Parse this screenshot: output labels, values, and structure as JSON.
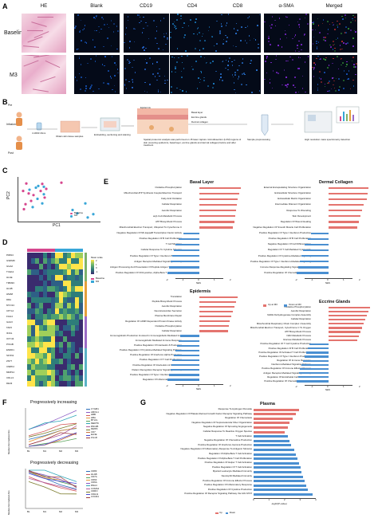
{
  "colors": {
    "red": "#e4746f",
    "blue": "#4a8fd1",
    "baseline": "#d6478e",
    "m3": "#38a6d8"
  },
  "panelA": {
    "label": "A",
    "columns": [
      "HE",
      "Blank",
      "CD19",
      "CD4",
      "CD8",
      "α-SMA",
      "Merged"
    ],
    "rows": [
      "Baseline",
      "M3"
    ]
  },
  "panelB": {
    "label": "B",
    "pre": "Pre",
    "post": "Post",
    "infusion": "Infusion",
    "drug": "4.19N0 16mL",
    "obtain": "Obtain skin tissue samples",
    "embed": "Embedding, sectioning and staining",
    "layers": [
      "Epidermis",
      "Basal layer",
      "Eccrine glands",
      "Dermal collagen"
    ],
    "spatial": "Spatial proteomic analysis was performed on 15 laser capture microdissection (LCM) regions of skin (covering epidermis, basal layer, eccrine glands and dermal collagen) before and after treatment",
    "prep": "Sample preprocessing",
    "ms": "High resolution mass spectrometry detection"
  },
  "panelC": {
    "label": "C",
    "xlabel": "PC1",
    "ylabel": "PC2",
    "legend": [
      "Baseline",
      "M3"
    ],
    "baseline": [
      [
        0.52,
        0.1
      ],
      [
        0.28,
        0.13
      ],
      [
        0.08,
        0.12
      ],
      [
        0.04,
        0.3
      ],
      [
        0.33,
        0.25
      ],
      [
        0.26,
        0.3
      ],
      [
        0.11,
        0.36
      ],
      [
        0.17,
        0.4
      ],
      [
        0.31,
        0.46
      ],
      [
        0.14,
        0.54
      ],
      [
        0.07,
        0.62
      ],
      [
        0.05,
        0.74
      ]
    ],
    "m3": [
      [
        0.23,
        0.18
      ],
      [
        0.3,
        0.2
      ],
      [
        0.2,
        0.22
      ],
      [
        0.12,
        0.27
      ],
      [
        0.3,
        0.38
      ],
      [
        0.22,
        0.49
      ],
      [
        0.28,
        0.6
      ],
      [
        0.16,
        0.69
      ],
      [
        0.82,
        0.6
      ],
      [
        0.66,
        0.76
      ],
      [
        0.72,
        0.84
      ],
      [
        0.92,
        0.86
      ],
      [
        0.85,
        0.94
      ]
    ]
  },
  "panelD": {
    "label": "D",
    "genes": [
      "PAB14",
      "GSDMD",
      "GGA2",
      "TCEA1",
      "HLAE",
      "TMM93",
      "HLAB",
      "HMA8",
      "DRA",
      "MYO1C",
      "CPYL2",
      "FGG4",
      "GAA3",
      "TAP2",
      "IF44L",
      "OXY44",
      "PX11B",
      "ENDD1",
      "SFXN1",
      "ZN77",
      "CMPK2",
      "MMP14",
      "CDLL3",
      "DE43"
    ],
    "legend_title": "Mean scale",
    "scale": [
      "2",
      "1",
      "0",
      "-1"
    ],
    "groups": [
      "Baseline",
      "M3"
    ]
  },
  "panelE": {
    "label": "E",
    "xlabel": "NES",
    "legend": [
      "Up at M3",
      "Down at M3"
    ],
    "charts": [
      {
        "title": "Basal Layer",
        "terms": [
          "Oxidative Phosphorylation",
          "Mitochondrial ATP Synthesis Coupled Electron Transport",
          "Fatty Acid Oxidation",
          "Cellular Respiration",
          "Aerobic Respiration",
          "acyl-CoA Metabolic Process",
          "ATP Biosynthetic Process",
          "Mitochondrial Electron Transport, Ubiquinol To Cytochrome C",
          "Negative Regulation Of NF-kappaB Transcription Factor Activity",
          "Positive Regulation Of B Cell Proliferation",
          "T Cell Migration",
          "Cellular Response To Cytokine Stimulus",
          "Positive Regulation Of Type I Interferon Production",
          "Antigen Receptor-Mediated Signaling Pathway",
          "Antigen Processing And Presentation Of Peptide Antigen Via MHC Class I",
          "Positive Regulation Of CD4-positive, Alpha-Beta T Cell Activation"
        ],
        "values": [
          2.6,
          2.5,
          2.4,
          2.35,
          2.3,
          2.25,
          2.2,
          2.1,
          -1.0,
          -1.3,
          -1.5,
          -1.6,
          -1.7,
          -1.8,
          -1.9,
          -2.0
        ]
      },
      {
        "title": "Dermal Collagen",
        "terms": [
          "External Encapsulating Structure Organization",
          "Extracellular Structure Organization",
          "Extracellular Matrix Organization",
          "Intermediate Filament Organization",
          "Response To Wounding",
          "Skin Development",
          "Regulation Of Wound Healing",
          "Negative Regulation Of Smooth Muscle Cell Proliferation",
          "Positive Regulation Of Type I Interferon Production",
          "Positive Regulation Of B Cell Proliferation",
          "Negative Regulation Of Cell Differentiation",
          "Regulation Of T Cell Mediated Cytotoxicity",
          "Positive Regulation Of Cytokine-Mediated Signaling",
          "Positive Regulation Of Type I Interferon-Mediated Signaling",
          "Immune Response-Regulating Signaling Pathway",
          "Positive Regulation Of Chemokine Production"
        ],
        "values": [
          2.5,
          2.45,
          2.4,
          2.2,
          2.1,
          2.0,
          1.9,
          1.8,
          -1.1,
          -1.3,
          -1.5,
          -1.6,
          -1.7,
          -1.8,
          -1.9,
          -2.0
        ]
      },
      {
        "title": "Epidermis",
        "terms": [
          "Translation",
          "Peptide Biosynthetic Process",
          "Aerobic Respiration",
          "Neurotransmitter Secretion",
          "Plasma Membrane Repair",
          "Regulation Of cAMP-Dependent Protein Kinase Activity",
          "Oxidative Phosphorylation",
          "Cellular Respiration",
          "Immunoglobulin Production Involved In Immunoglobulin-Mediated Immune Response",
          "Immunoglobulin Mediated Immune Response",
          "Positive Regulation Of Interleukin-6 Production",
          "Positive Regulation Of Cytokine-Mediated Signaling Pathway",
          "Positive Regulation Of Interferon-Alpha Production",
          "Positive Regulation Of T Cell Proliferation",
          "Positive Regulation Of Interleukin-12 Production",
          "Pattern Recognition Receptor Signaling Pathway",
          "Positive Regulation Of Type I Interferon Production",
          "Regulation Of Inflammatory Response"
        ],
        "values": [
          2.4,
          2.3,
          2.2,
          2.1,
          2.0,
          1.9,
          1.85,
          1.8,
          -1.2,
          -1.3,
          -1.4,
          -1.5,
          -1.6,
          -1.7,
          -1.75,
          -1.8,
          -1.9,
          -2.0
        ]
      },
      {
        "title": "Eccrine Glands",
        "terms": [
          "Oxidative Phosphorylation",
          "Aerobic Respiration",
          "NADH Dehydrogenase Complex Assembly",
          "Cellular Respiration",
          "Mitochondrial Respiratory Chain Complex I Assembly",
          "Mitochondrial Electron Transport, Cytochrome C To Oxygen",
          "ATP Biosynthetic Process",
          "NAD Metabolic Process",
          "Glucose Metabolic Process",
          "Positive Regulation Of T Cell Cytokine Production",
          "Positive Regulation Of B Cell Proliferation",
          "Positive Regulation Of Activated T Cell Proliferation",
          "Positive Regulation Of Type I Interferon Production",
          "Regulation Of Immune Response",
          "Interferon-Mediated Signaling Pathway",
          "Positive Regulation Of Immune Effector Process",
          "Antigen Receptor-Mediated Signaling Pathway",
          "Regulation Of Endothelial Cell Proliferation",
          "Positive Regulation Of Chemokine Production"
        ],
        "values": [
          2.6,
          2.5,
          2.4,
          2.3,
          2.2,
          2.1,
          2.0,
          1.9,
          1.8,
          -1.2,
          -1.3,
          -1.4,
          -1.5,
          -1.6,
          -1.7,
          -1.8,
          -1.85,
          -1.9,
          -2.0
        ]
      }
    ]
  },
  "panelF": {
    "label": "F",
    "top_title": "Progressively increasing",
    "bottom_title": "Progressively decreasing",
    "ylabel": "Median Normalized Abs",
    "x": [
      "BL",
      "M1",
      "M2",
      "M3"
    ],
    "inc_genes": [
      "CYGB1",
      "AMOL1",
      "HBB",
      "HBA",
      "BTLIG",
      "MERTK",
      "RN13B",
      "MMP3",
      "CD7",
      "ELNE",
      "FhmR"
    ],
    "dec_genes": [
      "CD83",
      "HLAB",
      "CD7A",
      "CD63",
      "CD6A",
      "RNA4",
      "COMA2",
      "CDRO",
      "CDH11",
      "CXCR4"
    ]
  },
  "panelG": {
    "label": "G",
    "title": "Plasma",
    "xlabel": "-log10(P-value)",
    "legend": [
      "Up",
      "Down"
    ],
    "terms": [
      "Response To Hydrogen Peroxide",
      "Negative Regulation Of Platelet-Derived Growth Factor Receptor Signaling Pathway",
      "Regulation Of Chemotaxis",
      "Negative Regulation Of Supramolecular Fiber Organization",
      "Negative Regulation Of Sprouting Angiogenesis",
      "Cellular Response To Reactive Oxygen Species",
      "T Cell Activation",
      "Negative Regulation Of Chemokine Production",
      "Positive Regulation Of Interferon-Gamma Production",
      "Negative Regulation Of Inflammatory Response To Antigenic Stimulus",
      "Regulation Of Alpha-Beta T Cell Activation",
      "Positive Regulation Of Alpha-Beta T Cell Proliferation",
      "Positive Regulation Of Helper T Cell Activation",
      "Positive Regulation Of T Cell Activation",
      "Myeloid Leukocyte Mediated Immunity",
      "Neutrophil Mediated Immunity",
      "Positive Regulation Of Immune Effector Process",
      "Positive Regulation Of Inflammatory Response",
      "Positive Regulation Of Cytokine Production",
      "Positive Regulation Of Receptor Signaling Pathway Via JAK-STAT"
    ],
    "values": [
      2.9,
      2.7,
      2.5,
      2.3,
      2.2,
      2.0,
      -2.2,
      -2.3,
      -2.4,
      -2.6,
      -2.7,
      -2.8,
      -2.9,
      -3.0,
      -3.1,
      -3.2,
      -3.3,
      -3.4,
      -3.5,
      -3.8
    ],
    "ticks": [
      "0",
      "1",
      "2",
      "3",
      "4"
    ]
  }
}
